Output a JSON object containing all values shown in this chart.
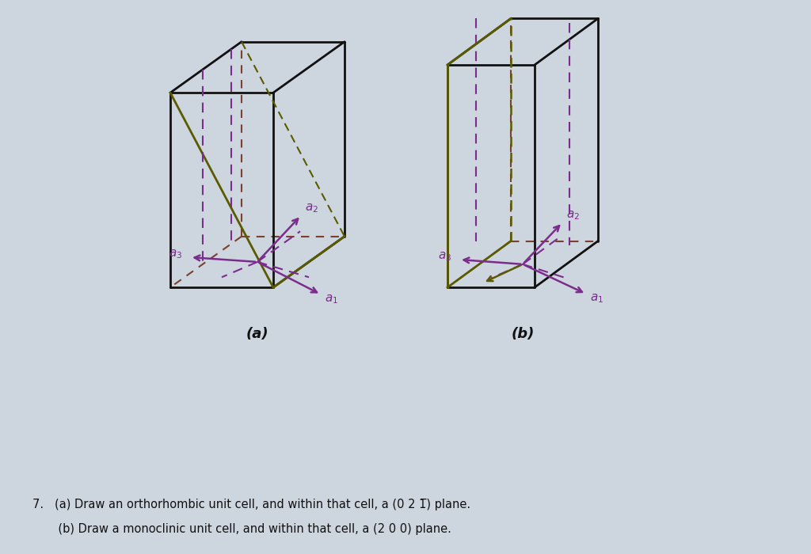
{
  "bg_color": "#cdd5df",
  "box_color": "#111111",
  "dashed_brown": "#7B4030",
  "dashed_purple": "#7B2D8B",
  "axis_purple": "#7B2D8B",
  "olive_color": "#5A5A00",
  "text_color": "#111111",
  "title_a": "(a)",
  "title_b": "(b)",
  "bottom_text_1": "7.   (a) Draw an orthorhombic unit cell, and within that cell, a (0 2 1̅) plane.",
  "bottom_text_2": "       (b) Draw a monoclinic unit cell, and within that cell, a (2 0 0) plane."
}
